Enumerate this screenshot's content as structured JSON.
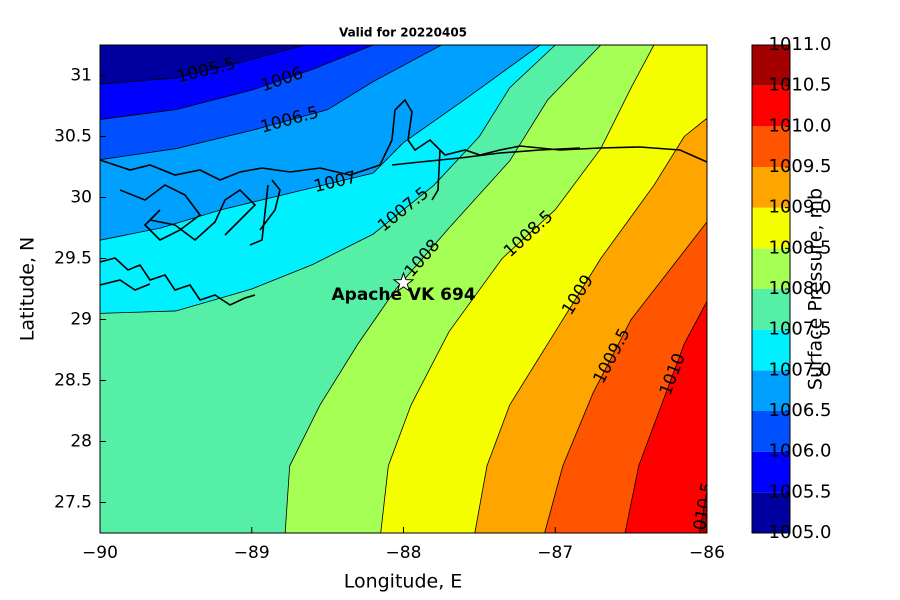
{
  "chart_data": {
    "type": "contour",
    "title": "Valid for 20220405",
    "xlabel": "Longitude, E",
    "ylabel": "Latitude, N",
    "xlim": [
      -90,
      -86
    ],
    "ylim": [
      27.25,
      31.25
    ],
    "xticks": [
      {
        "value": -90,
        "label": "−90"
      },
      {
        "value": -89,
        "label": "−89"
      },
      {
        "value": -88,
        "label": "−88"
      },
      {
        "value": -87,
        "label": "−87"
      },
      {
        "value": -86,
        "label": "−86"
      }
    ],
    "yticks": [
      27.5,
      28,
      28.5,
      29,
      29.5,
      30,
      30.5,
      31
    ],
    "colorbar": {
      "label": "Surface Pressure, mb",
      "lim": [
        1005,
        1011
      ],
      "ticks": [
        {
          "value": 1005,
          "label": "1005.0"
        },
        1005.5,
        {
          "value": 1006,
          "label": "1006.0"
        },
        1006.5,
        {
          "value": 1007,
          "label": "1007.0"
        },
        1007.5,
        {
          "value": 1008,
          "label": "1008.0"
        },
        1008.5,
        {
          "value": 1009,
          "label": "1009.0"
        },
        1009.5,
        {
          "value": 1010,
          "label": "1010.0"
        },
        1010.5,
        {
          "value": 1011,
          "label": "1011.0"
        }
      ],
      "colors": [
        "#00009f",
        "#0000ff",
        "#0050ff",
        "#00a0ff",
        "#00f0ff",
        "#55f0a5",
        "#a5ff55",
        "#f5ff00",
        "#ffa500",
        "#ff5500",
        "#ff0000",
        "#a50000"
      ]
    },
    "contours": [
      {
        "level": 1005.5,
        "lon": [
          -90,
          -89.5,
          -89.1,
          -88.65
        ],
        "lat": [
          30.93,
          30.98,
          31.1,
          31.25
        ]
      },
      {
        "level": 1006,
        "lon": [
          -90,
          -89.5,
          -89.0,
          -88.6,
          -88.2
        ],
        "lat": [
          30.64,
          30.72,
          30.88,
          31.05,
          31.25
        ]
      },
      {
        "level": 1006.5,
        "lon": [
          -90,
          -89.5,
          -89.0,
          -88.5,
          -88.2,
          -87.75
        ],
        "lat": [
          30.31,
          30.4,
          30.55,
          30.72,
          30.95,
          31.25
        ]
      },
      {
        "level": 1007,
        "lon": [
          -90,
          -89.6,
          -89.2,
          -88.7,
          -88.2,
          -88.0,
          -87.6,
          -87.1
        ],
        "lat": [
          29.65,
          29.75,
          29.9,
          30.05,
          30.2,
          30.45,
          30.8,
          31.25
        ]
      },
      {
        "level": 1007.5,
        "lon": [
          -90,
          -89.5,
          -89.0,
          -88.6,
          -88.2,
          -87.8,
          -87.5,
          -87.3,
          -87.0
        ],
        "lat": [
          29.05,
          29.07,
          29.25,
          29.45,
          29.7,
          30.1,
          30.5,
          30.9,
          31.25
        ]
      },
      {
        "level": 1008,
        "lon": [
          -88.78,
          -88.75,
          -88.55,
          -88.3,
          -88.05,
          -87.7,
          -87.3,
          -87.05,
          -86.7
        ],
        "lat": [
          27.25,
          27.8,
          28.3,
          28.8,
          29.25,
          29.75,
          30.3,
          30.8,
          31.25
        ]
      },
      {
        "level": 1008.5,
        "lon": [
          -88.15,
          -88.1,
          -87.95,
          -87.7,
          -87.35,
          -87.0,
          -86.7,
          -86.5,
          -86.35
        ],
        "lat": [
          27.25,
          27.8,
          28.3,
          28.9,
          29.5,
          29.9,
          30.4,
          30.9,
          31.25
        ]
      },
      {
        "level": 1009,
        "lon": [
          -87.53,
          -87.45,
          -87.3,
          -87.0,
          -86.7,
          -86.35,
          -86.15,
          -86
        ],
        "lat": [
          27.25,
          27.8,
          28.3,
          28.9,
          29.5,
          30.1,
          30.5,
          30.65
        ]
      },
      {
        "level": 1009.5,
        "lon": [
          -87.07,
          -86.95,
          -86.75,
          -86.5,
          -86.25,
          -86
        ],
        "lat": [
          27.25,
          27.8,
          28.4,
          29.0,
          29.4,
          29.8
        ]
      },
      {
        "level": 1010,
        "lon": [
          -86.54,
          -86.45,
          -86.3,
          -86.15,
          -86
        ],
        "lat": [
          27.25,
          27.8,
          28.3,
          28.8,
          29.15
        ]
      },
      {
        "level": 1010.5,
        "lon": [
          -86.05,
          -86
        ],
        "lat": [
          27.25,
          27.6
        ]
      }
    ],
    "station": {
      "name": "Apache VK 694",
      "lon": -88,
      "lat": 29.3
    }
  }
}
